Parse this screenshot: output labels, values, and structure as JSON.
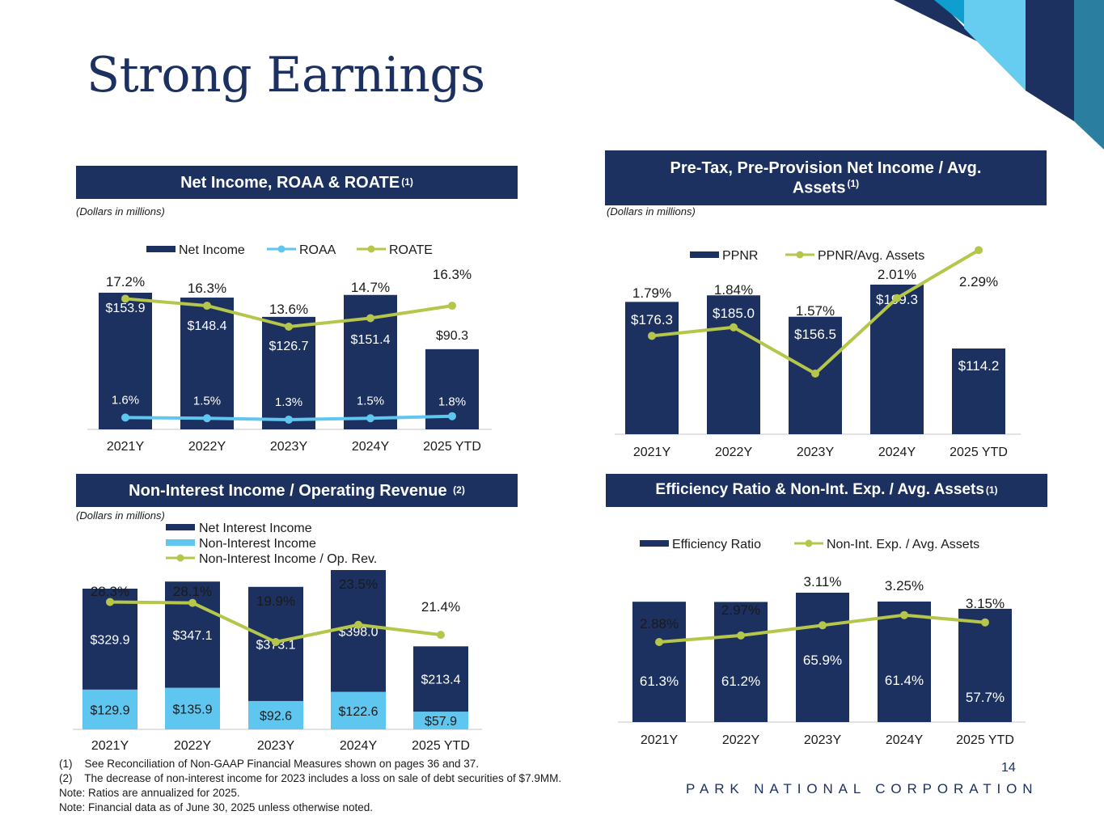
{
  "slide": {
    "title": "Strong Earnings",
    "page_number": "14",
    "company": "PARK NATIONAL CORPORATION",
    "footnotes": [
      "(1)    See Reconciliation of Non-GAAP Financial Measures shown on pages 36 and 37.",
      "(2)    The decrease of non-interest income for 2023 includes a loss on sale of debt securities of $7.9MM.",
      "Note: Ratios are annualized for 2025.",
      "Note: Financial data as of June 30, 2025 unless otherwise noted."
    ],
    "colors": {
      "navy": "#1c3160",
      "light_blue": "#5fc6ef",
      "olive": "#b5c64a",
      "teal": "#2a7fa0"
    }
  },
  "panels": {
    "net_income": {
      "header": "Net Income, ROAA & ROATE",
      "header_sup": "(1)",
      "note": "(Dollars in millions)"
    },
    "pptnr": {
      "header_line1": "Pre-Tax, Pre-Provision Net Income / Avg.",
      "header_line2": "Assets",
      "header_sup": "(1)",
      "note": "(Dollars in millions)"
    },
    "non_interest": {
      "header": "Non-Interest Income / Operating Revenue",
      "header_sup": "(2)",
      "note": "(Dollars in millions)"
    },
    "efficiency": {
      "header": "Efficiency Ratio & Non-Int. Exp. / Avg. Assets",
      "header_sup": "(1)"
    }
  },
  "chart_data": [
    {
      "id": "net_income",
      "type": "bar",
      "categories": [
        "2021Y",
        "2022Y",
        "2023Y",
        "2024Y",
        "2025 YTD"
      ],
      "series": [
        {
          "name": "Net Income",
          "kind": "bar",
          "values": [
            153.9,
            148.4,
            126.7,
            151.4,
            90.3
          ],
          "labels": [
            "$153.9",
            "$148.4",
            "$126.7",
            "$151.4",
            "$90.3"
          ]
        },
        {
          "name": "ROAA",
          "kind": "line",
          "values": [
            1.6,
            1.5,
            1.3,
            1.5,
            1.8
          ],
          "labels": [
            "1.6%",
            "1.5%",
            "1.3%",
            "1.5%",
            "1.8%"
          ]
        },
        {
          "name": "ROATE",
          "kind": "line",
          "values": [
            17.2,
            16.3,
            13.6,
            14.7,
            16.3
          ],
          "labels": [
            "17.2%",
            "16.3%",
            "13.6%",
            "14.7%",
            "16.3%"
          ]
        }
      ],
      "legend": [
        "Net Income",
        "ROAA",
        "ROATE"
      ],
      "ylabel": "",
      "xlabel": ""
    },
    {
      "id": "pptnr",
      "type": "bar",
      "categories": [
        "2021Y",
        "2022Y",
        "2023Y",
        "2024Y",
        "2025 YTD"
      ],
      "series": [
        {
          "name": "PPNR",
          "kind": "bar",
          "values": [
            176.3,
            185.0,
            156.5,
            199.3,
            114.2
          ],
          "labels": [
            "$176.3",
            "$185.0",
            "$156.5",
            "$199.3",
            "$114.2"
          ]
        },
        {
          "name": "PPNR/Avg. Assets",
          "kind": "line",
          "values": [
            1.79,
            1.84,
            1.57,
            2.01,
            2.29
          ],
          "labels": [
            "1.79%",
            "1.84%",
            "1.57%",
            "2.01%",
            "2.29%"
          ]
        }
      ],
      "legend": [
        "PPNR",
        "PPNR/Avg. Assets"
      ],
      "ylabel": "",
      "xlabel": ""
    },
    {
      "id": "non_interest",
      "type": "bar",
      "stacked": true,
      "categories": [
        "2021Y",
        "2022Y",
        "2023Y",
        "2024Y",
        "2025 YTD"
      ],
      "series": [
        {
          "name": "Net Interest Income",
          "kind": "bar",
          "values": [
            329.9,
            347.1,
            373.1,
            398.0,
            213.4
          ],
          "labels": [
            "$329.9",
            "$347.1",
            "$373.1",
            "$398.0",
            "$213.4"
          ]
        },
        {
          "name": "Non-Interest Income",
          "kind": "bar",
          "values": [
            129.9,
            135.9,
            92.6,
            122.6,
            57.9
          ],
          "labels": [
            "$129.9",
            "$135.9",
            "$92.6",
            "$122.6",
            "$57.9"
          ]
        },
        {
          "name": "Non-Interest Income / Op. Rev.",
          "kind": "line",
          "values": [
            28.3,
            28.1,
            19.9,
            23.5,
            21.4
          ],
          "labels": [
            "28.3%",
            "28.1%",
            "19.9%",
            "23.5%",
            "21.4%"
          ]
        }
      ],
      "legend": [
        "Net Interest Income",
        "Non-Interest Income",
        "Non-Interest Income / Op. Rev."
      ],
      "ylabel": "",
      "xlabel": ""
    },
    {
      "id": "efficiency",
      "type": "bar",
      "categories": [
        "2021Y",
        "2022Y",
        "2023Y",
        "2024Y",
        "2025 YTD"
      ],
      "series": [
        {
          "name": "Efficiency Ratio",
          "kind": "bar",
          "values": [
            61.3,
            61.2,
            65.9,
            61.4,
            57.7
          ],
          "labels": [
            "61.3%",
            "61.2%",
            "65.9%",
            "61.4%",
            "57.7%"
          ]
        },
        {
          "name": "Non-Int. Exp. / Avg. Assets",
          "kind": "line",
          "values": [
            2.88,
            2.97,
            3.11,
            3.25,
            3.15
          ],
          "labels": [
            "2.88%",
            "2.97%",
            "3.11%",
            "3.25%",
            "3.15%"
          ]
        }
      ],
      "legend": [
        "Efficiency Ratio",
        "Non-Int. Exp. / Avg. Assets"
      ],
      "ylabel": "",
      "xlabel": ""
    }
  ]
}
